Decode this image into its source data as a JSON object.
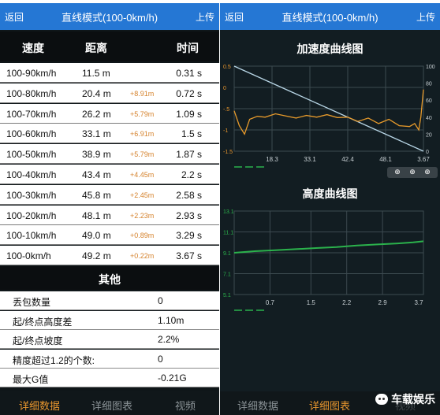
{
  "left": {
    "back_label": "返回",
    "title": "直线模式(100-0km/h)",
    "upload_label": "上传",
    "headers": {
      "speed": "速度",
      "distance": "距离",
      "time": "时间"
    },
    "rows": [
      {
        "speed": "100-90km/h",
        "distance": "11.5 m",
        "diff": "",
        "time": "0.31 s"
      },
      {
        "speed": "100-80km/h",
        "distance": "20.4 m",
        "diff": "+8.91m",
        "time": "0.72 s"
      },
      {
        "speed": "100-70km/h",
        "distance": "26.2 m",
        "diff": "+5.79m",
        "time": "1.09 s"
      },
      {
        "speed": "100-60km/h",
        "distance": "33.1 m",
        "diff": "+6.91m",
        "time": "1.5 s"
      },
      {
        "speed": "100-50km/h",
        "distance": "38.9 m",
        "diff": "+5.79m",
        "time": "1.87 s"
      },
      {
        "speed": "100-40km/h",
        "distance": "43.4 m",
        "diff": "+4.45m",
        "time": "2.2 s"
      },
      {
        "speed": "100-30km/h",
        "distance": "45.8 m",
        "diff": "+2.45m",
        "time": "2.58 s"
      },
      {
        "speed": "100-20km/h",
        "distance": "48.1 m",
        "diff": "+2.23m",
        "time": "2.93 s"
      },
      {
        "speed": "100-10km/h",
        "distance": "49.0 m",
        "diff": "+0.89m",
        "time": "3.29 s"
      },
      {
        "speed": "100-0km/h",
        "distance": "49.2 m",
        "diff": "+0.22m",
        "time": "3.67 s"
      }
    ],
    "other_title": "其他",
    "other_rows": [
      {
        "label": "丢包数量",
        "value": "0"
      },
      {
        "label": "起/终点高度差",
        "value": "1.10m"
      },
      {
        "label": "起/终点坡度",
        "value": "2.2%"
      },
      {
        "label": "精度超过1.2的个数:",
        "value": "0"
      },
      {
        "label": "最大G值",
        "value": "-0.21G"
      }
    ],
    "tabs": [
      "详细数据",
      "详细图表",
      "视频"
    ],
    "active_tab": 0
  },
  "right": {
    "back_label": "返回",
    "title": "直线模式(100-0km/h)",
    "upload_label": "上传",
    "tabs": [
      "详细数据",
      "详细图表",
      "视频"
    ],
    "active_tab": 1,
    "watermark": "车载娱乐",
    "zoom_icons": [
      "zoom-in-icon",
      "zoom-reset-icon",
      "zoom-out-icon"
    ]
  },
  "chart_data": [
    {
      "type": "line",
      "title": "加速度曲线图",
      "x_ticks": [
        "18.3",
        "33.1",
        "42.4",
        "48.1",
        "3.67"
      ],
      "y_left_ticks": [
        "0.5",
        "0",
        "-.5",
        "-1",
        "-1.5"
      ],
      "y_left_range": [
        -1.5,
        0.5
      ],
      "y_right_ticks": [
        "100",
        "80",
        "60",
        "40",
        "20",
        "0"
      ],
      "y_right_range": [
        0,
        100
      ],
      "grid": true,
      "series": [
        {
          "axis": "right",
          "color": "#b8d6e6",
          "x": [
            0,
            3.67
          ],
          "y": [
            100,
            0
          ]
        },
        {
          "axis": "left",
          "color": "#e79a2b",
          "x": [
            0.0,
            0.1,
            0.2,
            0.3,
            0.45,
            0.6,
            0.8,
            1.0,
            1.2,
            1.4,
            1.6,
            1.8,
            2.0,
            2.2,
            2.4,
            2.6,
            2.8,
            3.0,
            3.2,
            3.4,
            3.5,
            3.58,
            3.62,
            3.67
          ],
          "y": [
            -0.55,
            -0.9,
            -1.1,
            -0.75,
            -0.68,
            -0.7,
            -0.62,
            -0.67,
            -0.72,
            -0.66,
            -0.7,
            -0.64,
            -0.71,
            -0.7,
            -0.8,
            -0.72,
            -0.85,
            -0.75,
            -0.9,
            -0.92,
            -0.85,
            -1.0,
            -0.7,
            -0.05
          ]
        }
      ]
    },
    {
      "type": "line",
      "title": "高度曲线图",
      "x_ticks": [
        "0.7",
        "1.5",
        "2.2",
        "2.9",
        "3.7"
      ],
      "x_range": [
        0,
        3.7
      ],
      "y_ticks": [
        "13.1",
        "11.1",
        "9.1",
        "7.1",
        "5.1"
      ],
      "y_range": [
        5.1,
        13.1
      ],
      "grid": true,
      "series": [
        {
          "color": "#2bb24c",
          "x": [
            0.0,
            0.4,
            0.8,
            1.2,
            1.6,
            2.0,
            2.4,
            2.8,
            3.2,
            3.5,
            3.7
          ],
          "y": [
            9.1,
            9.25,
            9.35,
            9.45,
            9.55,
            9.65,
            9.8,
            9.9,
            10.0,
            10.1,
            10.2
          ]
        }
      ]
    }
  ]
}
